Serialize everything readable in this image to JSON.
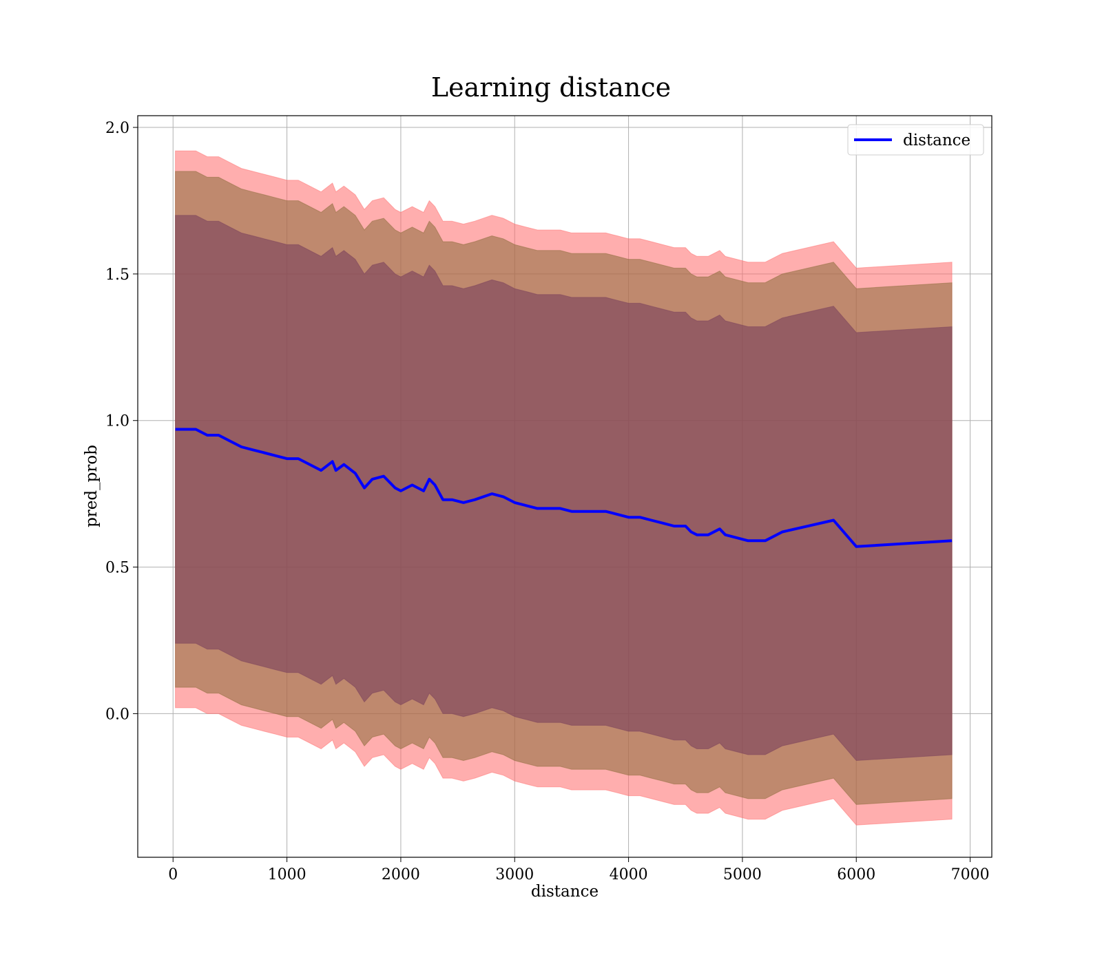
{
  "chart_data": {
    "type": "line",
    "title": "Learning distance",
    "xlabel": "distance",
    "ylabel": "pred_prob",
    "xlim": [
      -310,
      7190
    ],
    "ylim": [
      -0.49,
      2.04
    ],
    "xticks": [
      0,
      1000,
      2000,
      3000,
      4000,
      5000,
      6000,
      7000
    ],
    "xtick_labels": [
      "0",
      "1000",
      "2000",
      "3000",
      "4000",
      "5000",
      "6000",
      "7000"
    ],
    "yticks": [
      0.0,
      0.5,
      1.0,
      1.5,
      2.0
    ],
    "ytick_labels": [
      "0.0",
      "0.5",
      "1.0",
      "1.5",
      "2.0"
    ],
    "grid": true,
    "legend": {
      "placement": "top-right",
      "entries": [
        "distance"
      ]
    },
    "colors": {
      "line": "#0000ff",
      "band_outer": "#ff6b6b",
      "band_middle": "#8b6b3a",
      "band_inner": "#7a3f5c",
      "grid": "#b0b0b0"
    },
    "series": [
      {
        "name": "distance",
        "x": [
          20,
          100,
          200,
          300,
          400,
          500,
          600,
          700,
          800,
          900,
          1000,
          1100,
          1200,
          1300,
          1400,
          1430,
          1500,
          1600,
          1680,
          1750,
          1850,
          1950,
          2000,
          2100,
          2200,
          2250,
          2300,
          2370,
          2450,
          2550,
          2650,
          2800,
          2900,
          3000,
          3100,
          3200,
          3300,
          3400,
          3500,
          3600,
          3700,
          3800,
          3900,
          4000,
          4100,
          4200,
          4300,
          4400,
          4500,
          4550,
          4600,
          4700,
          4800,
          4850,
          5050,
          5200,
          5350,
          5800,
          6000,
          6840
        ],
        "y": [
          0.97,
          0.97,
          0.97,
          0.95,
          0.95,
          0.93,
          0.91,
          0.9,
          0.89,
          0.88,
          0.87,
          0.87,
          0.85,
          0.83,
          0.86,
          0.83,
          0.85,
          0.82,
          0.77,
          0.8,
          0.81,
          0.77,
          0.76,
          0.78,
          0.76,
          0.8,
          0.78,
          0.73,
          0.73,
          0.72,
          0.73,
          0.75,
          0.74,
          0.72,
          0.71,
          0.7,
          0.7,
          0.7,
          0.69,
          0.69,
          0.69,
          0.69,
          0.68,
          0.67,
          0.67,
          0.66,
          0.65,
          0.64,
          0.64,
          0.62,
          0.61,
          0.61,
          0.63,
          0.61,
          0.59,
          0.59,
          0.62,
          0.66,
          0.57,
          0.59
        ],
        "bands": [
          {
            "lower_offset": -0.95,
            "upper_offset": 0.95
          },
          {
            "lower_offset": -0.88,
            "upper_offset": 0.88
          },
          {
            "lower_offset": -0.73,
            "upper_offset": 0.73
          }
        ]
      }
    ]
  }
}
